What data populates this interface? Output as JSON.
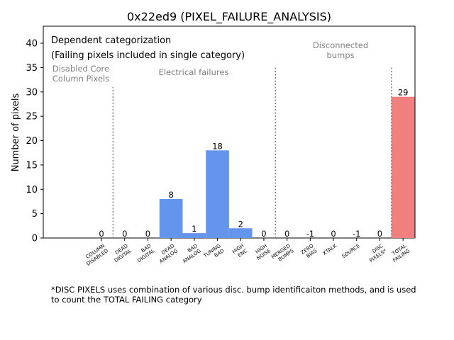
{
  "chart_data": {
    "type": "bar",
    "title": "0x22ed9 (PIXEL_FAILURE_ANALYSIS)",
    "xlabel": "",
    "ylabel": "Number of pixels",
    "ylim": [
      0,
      43.5
    ],
    "yticks": [
      0,
      5,
      10,
      15,
      20,
      25,
      30,
      35,
      40
    ],
    "grid": false,
    "categories": [
      "COLUMN\nDISABLED",
      "DEAD\nDIGITAL",
      "BAD\nDIGITAL",
      "DEAD\nANALOG",
      "BAD\nANALOG",
      "TUNING\nBAD",
      "HIGH\nENC",
      "HIGH\nNOISE",
      "MERGED\nBUMPS",
      "ZERO\nBIAS",
      "XTALK",
      "SOURCE",
      "DISC\nPIXELS*",
      "TOTAL\nFAILING"
    ],
    "values": [
      0,
      0,
      0,
      8,
      1,
      18,
      2,
      0,
      0,
      -1,
      0,
      -1,
      0,
      29
    ],
    "bar_colors": [
      "#6495ed",
      "#6495ed",
      "#6495ed",
      "#6495ed",
      "#6495ed",
      "#6495ed",
      "#6495ed",
      "#6495ed",
      "#6495ed",
      "#6495ed",
      "#6495ed",
      "#6495ed",
      "#6495ed",
      "#f08080"
    ],
    "section_dividers": [
      {
        "after_index": 0,
        "ymax": 31
      },
      {
        "after_index": 7,
        "ymax": 35
      },
      {
        "after_index": 12,
        "ymax": 35
      }
    ],
    "annotations": [
      {
        "text": "Dependent categorization",
        "color": "#000000"
      },
      {
        "text": "(Failing pixels included in single category)",
        "color": "#000000"
      },
      {
        "text": "Disabled Core\nColumn Pixels",
        "color": "#808080"
      },
      {
        "text": "Electrical failures",
        "color": "#808080"
      },
      {
        "text": "Disconnected\nbumps",
        "color": "#808080"
      }
    ]
  },
  "footnote": "*DISC PIXELS uses combination of various disc. bump identificaiton methods, and is used\nto count the TOTAL FAILING category"
}
